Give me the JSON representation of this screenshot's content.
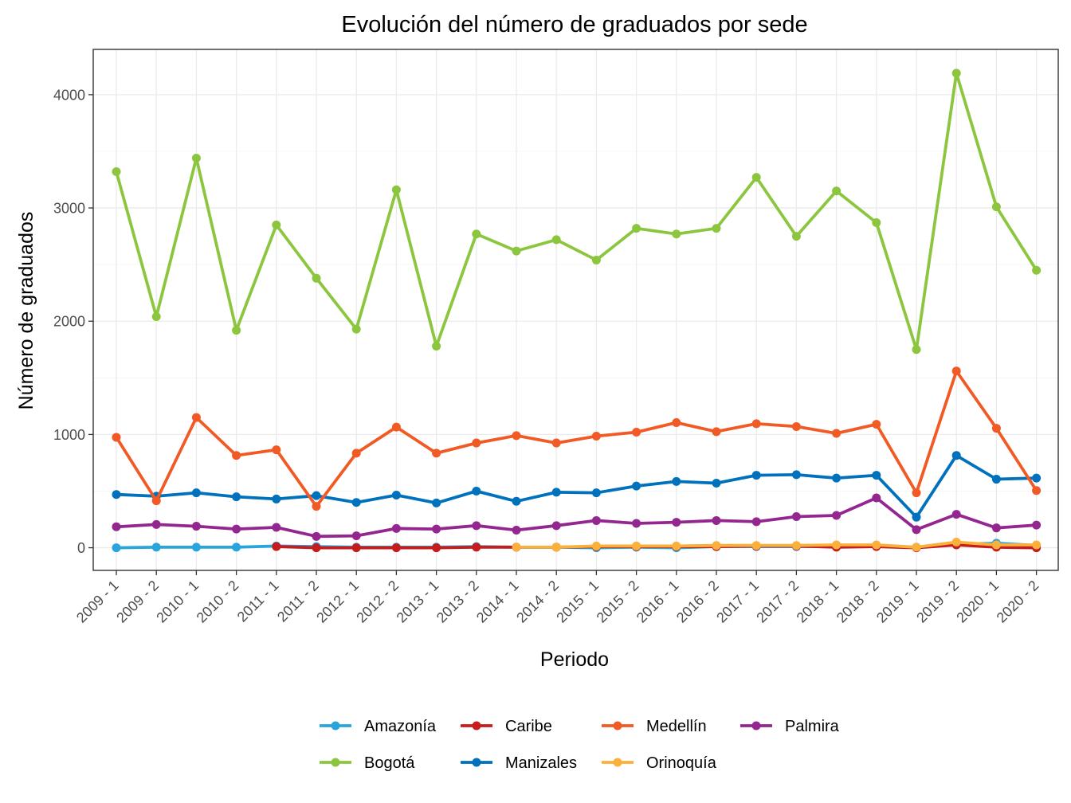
{
  "chart_data": {
    "type": "line",
    "title": "Evolución del número de graduados por sede",
    "xlabel": "Periodo",
    "ylabel": "Número de graduados",
    "ylim": [
      -200,
      4400
    ],
    "yticks": [
      0,
      1000,
      2000,
      3000,
      4000
    ],
    "grid": true,
    "legend_position": "bottom",
    "categories": [
      "2009 - 1",
      "2009 - 2",
      "2010 - 1",
      "2010 - 2",
      "2011 - 1",
      "2011 - 2",
      "2012 - 1",
      "2012 - 2",
      "2013 - 1",
      "2013 - 2",
      "2014 - 1",
      "2014 - 2",
      "2015 - 1",
      "2015 - 2",
      "2016 - 1",
      "2016 - 2",
      "2017 - 1",
      "2017 - 2",
      "2018 - 1",
      "2018 - 2",
      "2019 - 1",
      "2019 - 2",
      "2020 - 1",
      "2020 - 2"
    ],
    "series": [
      {
        "name": "Amazonía",
        "color": "#29A5DB",
        "values": [
          0,
          5,
          5,
          5,
          15,
          10,
          5,
          5,
          5,
          10,
          5,
          5,
          0,
          5,
          0,
          10,
          10,
          10,
          10,
          15,
          5,
          30,
          40,
          20
        ]
      },
      {
        "name": "Bogotá",
        "color": "#8CC63F",
        "values": [
          3320,
          2040,
          3440,
          1920,
          2850,
          2380,
          1930,
          3160,
          1780,
          2770,
          2620,
          2720,
          2540,
          2820,
          2770,
          2820,
          3270,
          2750,
          3150,
          2870,
          1750,
          4190,
          3010,
          2450
        ]
      },
      {
        "name": "Caribe",
        "color": "#C61C1C",
        "values": [
          null,
          null,
          null,
          null,
          10,
          0,
          0,
          0,
          0,
          5,
          5,
          5,
          10,
          10,
          10,
          10,
          15,
          15,
          5,
          10,
          0,
          25,
          5,
          0
        ]
      },
      {
        "name": "Manizales",
        "color": "#0071BC",
        "values": [
          470,
          455,
          485,
          450,
          430,
          460,
          400,
          465,
          395,
          500,
          410,
          490,
          485,
          545,
          585,
          570,
          640,
          645,
          615,
          640,
          270,
          815,
          605,
          615
        ]
      },
      {
        "name": "Medellín",
        "color": "#F15A24",
        "values": [
          975,
          415,
          1150,
          815,
          865,
          365,
          835,
          1065,
          835,
          925,
          990,
          925,
          985,
          1020,
          1105,
          1025,
          1095,
          1070,
          1010,
          1090,
          485,
          1560,
          1055,
          505
        ]
      },
      {
        "name": "Orinoquía",
        "color": "#FBB03B",
        "values": [
          null,
          null,
          null,
          null,
          null,
          null,
          null,
          null,
          null,
          null,
          5,
          5,
          15,
          15,
          15,
          20,
          20,
          20,
          25,
          25,
          5,
          50,
          25,
          25
        ]
      },
      {
        "name": "Palmira",
        "color": "#93278F",
        "values": [
          185,
          205,
          190,
          165,
          180,
          100,
          105,
          170,
          165,
          195,
          155,
          195,
          240,
          215,
          225,
          240,
          230,
          275,
          285,
          440,
          160,
          295,
          175,
          200
        ]
      }
    ]
  }
}
